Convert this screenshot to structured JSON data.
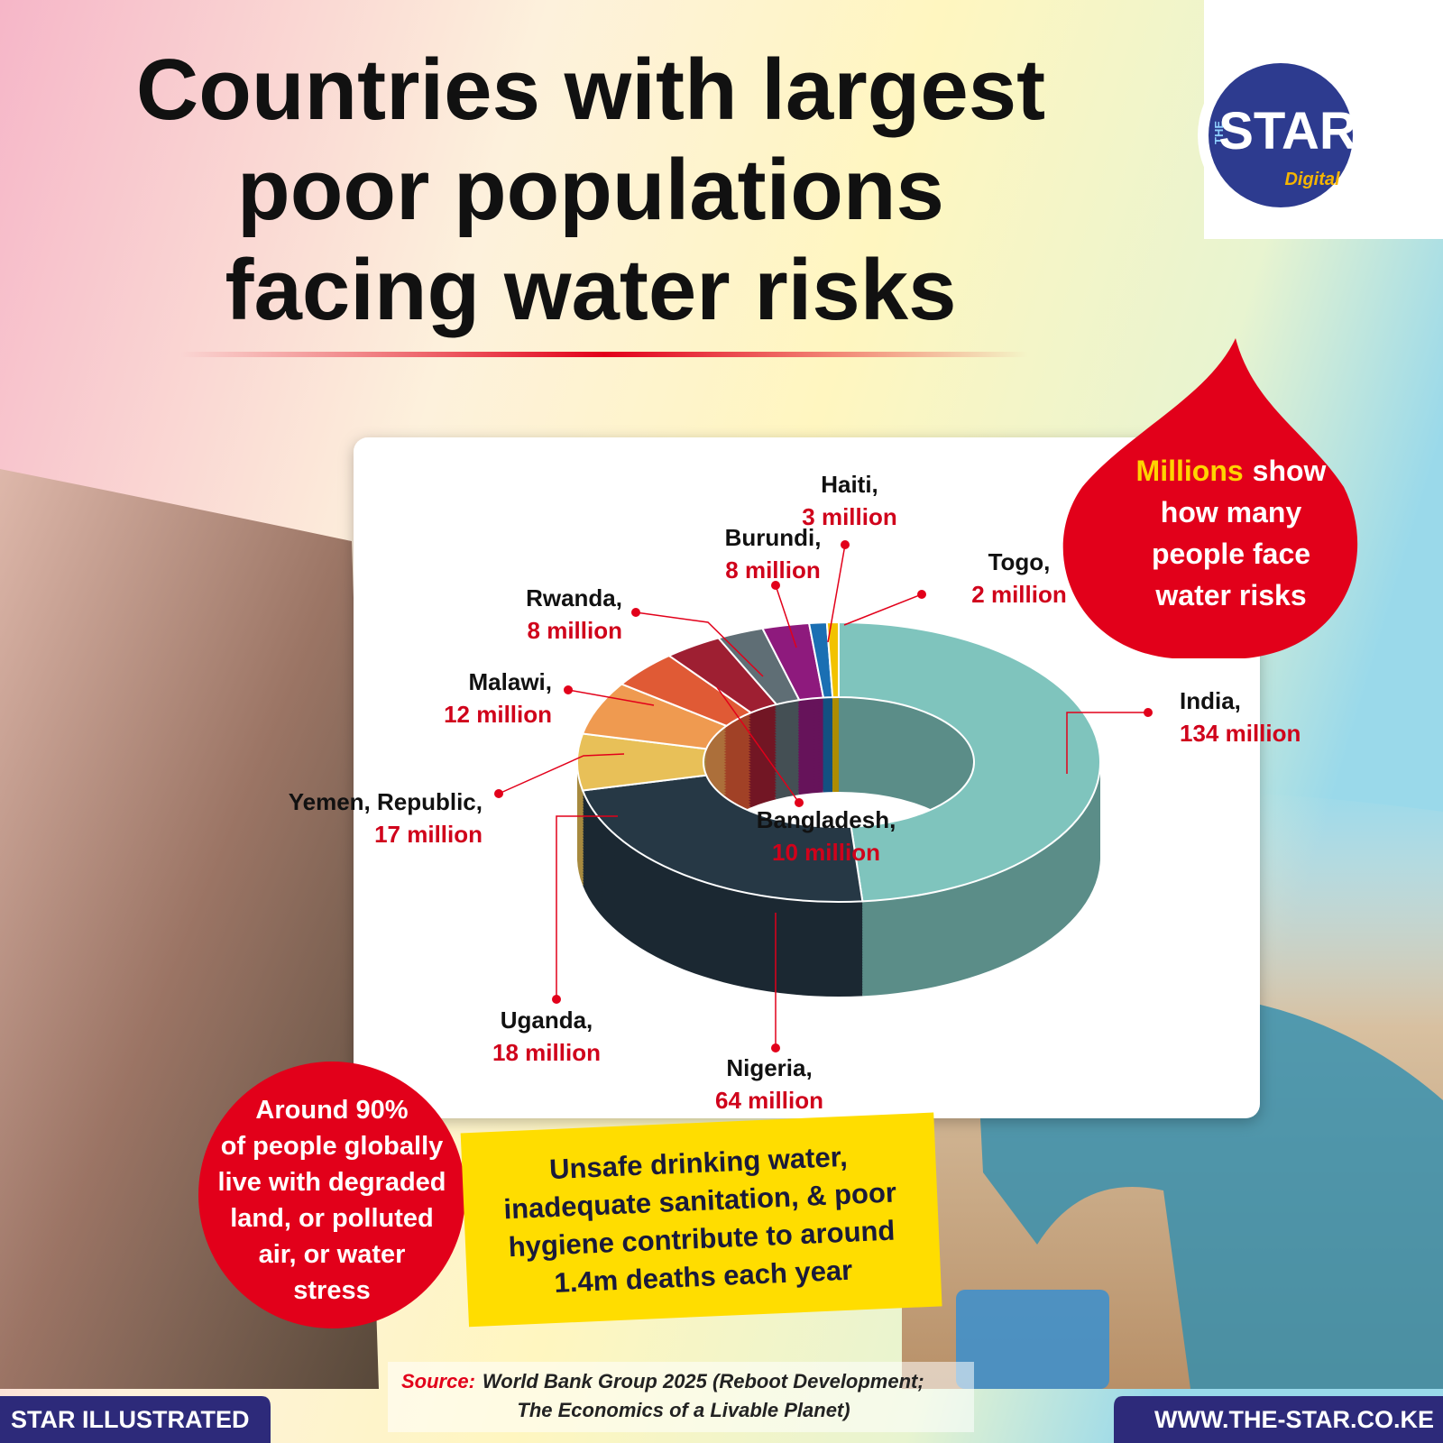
{
  "chart_data": {
    "type": "donut",
    "title": [
      "Countries with largest",
      "poor populations",
      "facing water risks"
    ],
    "categories": [
      "India,",
      "Nigeria,",
      "Uganda,",
      "Yemen, Republic,",
      "Malawi,",
      "Bangladesh,",
      "Rwanda,",
      "Burundi,",
      "Haiti,",
      "Togo,"
    ],
    "values": [
      134,
      64,
      18,
      17,
      12,
      10,
      8,
      8,
      3,
      2
    ],
    "value_labels": [
      "134 million",
      "64 million",
      "18 million",
      "17 million",
      "12 million",
      "10 million",
      "8 million",
      "8 million",
      "3 million",
      "2 million"
    ],
    "colors": [
      "#7fc4bd",
      "#263845",
      "#e8c058",
      "#ef9a50",
      "#e05a35",
      "#9e1f32",
      "#5f6e75",
      "#8e1a7d",
      "#1a6fb3",
      "#f2c200"
    ]
  },
  "logo": {
    "small": "THE",
    "main": "STAR",
    "sub": "Digital"
  },
  "drop_callout": {
    "highlight": "Millions",
    "rest": "show",
    "lines": [
      "how many",
      "people face",
      "water risks"
    ]
  },
  "circle_callout": [
    "Around 90%",
    "of people globally",
    "live with degraded",
    "land, or polluted",
    "air, or water",
    "stress"
  ],
  "box_callout": [
    "Unsafe drinking water,",
    "inadequate sanitation, & poor",
    "hygiene contribute to around",
    "1.4m deaths each year"
  ],
  "source": {
    "label": "Source:",
    "lines": [
      "World Bank Group 2025 (Reboot Development;",
      "The Economics of a Livable Planet)"
    ]
  },
  "footer": {
    "left": "STAR ILLUSTRATED",
    "right": "WWW.THE-STAR.CO.KE"
  }
}
